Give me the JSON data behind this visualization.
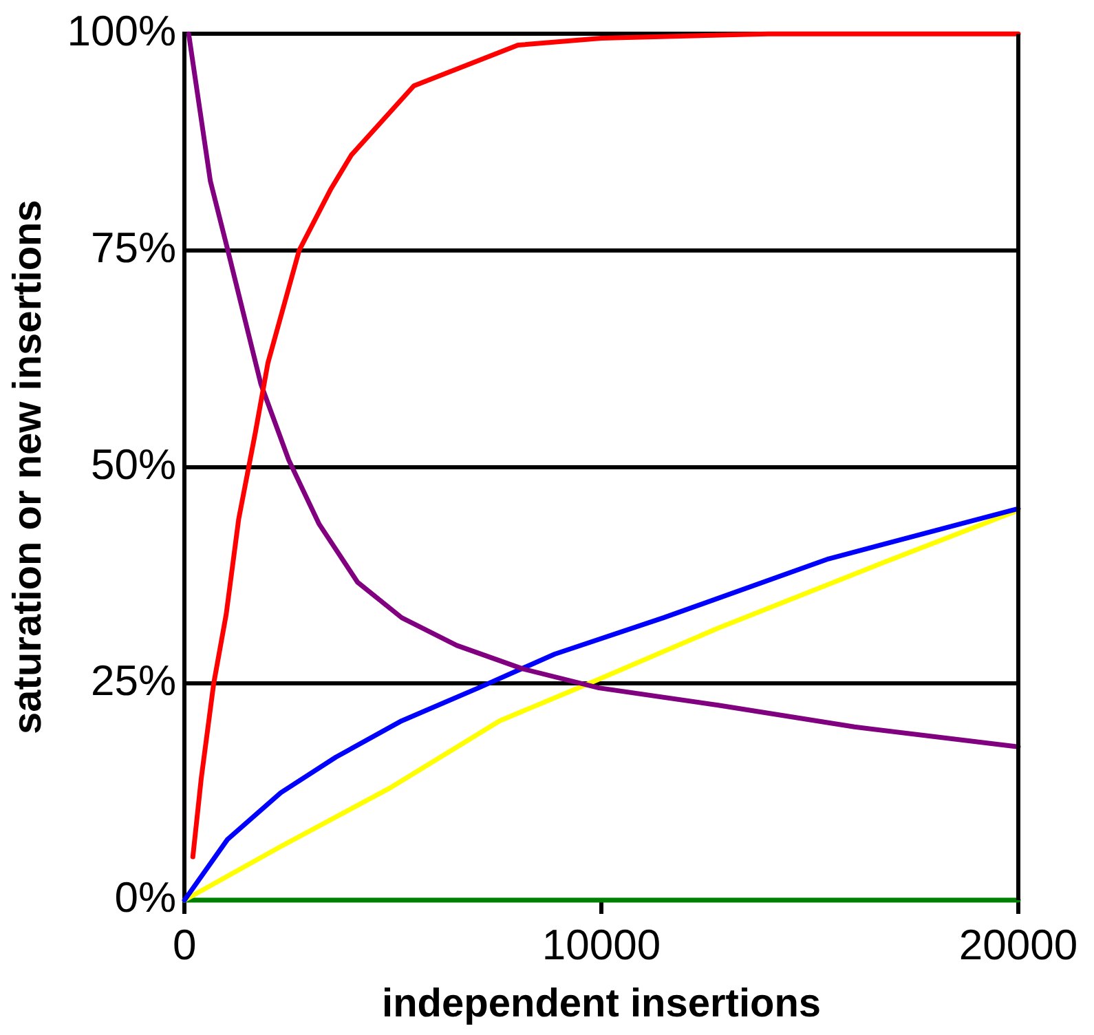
{
  "chart_data": {
    "type": "line",
    "xlabel": "independent insertions",
    "ylabel": "saturation or new insertions",
    "xlim": [
      0,
      20000
    ],
    "xticks": [
      0,
      10000,
      20000
    ],
    "ylim": [
      0,
      100
    ],
    "yticks": [
      {
        "value": 0,
        "label": "0%"
      },
      {
        "value": 25,
        "label": "25%"
      },
      {
        "value": 50,
        "label": "50%"
      },
      {
        "value": 75,
        "label": "75%"
      },
      {
        "value": 100,
        "label": "100%"
      }
    ],
    "grid": "y",
    "legend": false,
    "marker": "none",
    "line_style": "solid",
    "series": [
      {
        "color": "#ff0000",
        "x": [
          200,
          400,
          700,
          1000,
          1300,
          1700,
          2000,
          2750,
          3500,
          4000,
          5500,
          8000,
          10000,
          14000,
          20000
        ],
        "values": [
          5,
          14,
          25,
          33,
          44,
          54,
          62,
          75,
          82,
          86,
          94,
          98.7,
          99.5,
          100,
          100
        ]
      },
      {
        "color": "#800080",
        "x": [
          100,
          620,
          1060,
          1830,
          2500,
          3230,
          4150,
          5210,
          6530,
          8110,
          9940,
          12800,
          16070,
          20000
        ],
        "values": [
          100,
          83,
          74.6,
          59.6,
          50.8,
          43.4,
          36.7,
          32.6,
          29.4,
          26.7,
          24.5,
          22.5,
          20,
          17.7
        ]
      },
      {
        "color": "#0000ff",
        "x": [
          0,
          1030,
          2310,
          3630,
          5210,
          7050,
          8880,
          11490,
          15450,
          20000
        ],
        "values": [
          0,
          7,
          12.4,
          16.5,
          20.7,
          24.5,
          28.4,
          32.6,
          39.4,
          45.2
        ]
      },
      {
        "color": "#ffff00",
        "x": [
          0,
          2310,
          4950,
          7560,
          9650,
          12800,
          16730,
          20000
        ],
        "values": [
          0,
          6.2,
          13,
          20.7,
          24.9,
          31.4,
          38.9,
          45
        ]
      },
      {
        "color": "#008000",
        "x": [
          0,
          20000
        ],
        "values": [
          0,
          0
        ]
      }
    ]
  }
}
